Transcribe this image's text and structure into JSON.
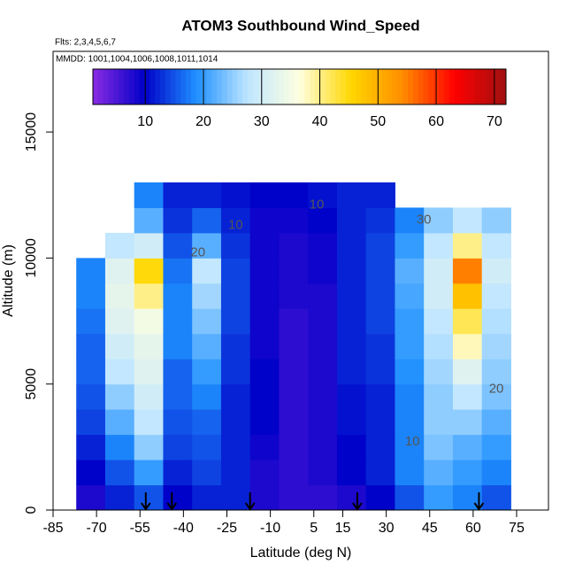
{
  "chart_data": {
    "type": "heatmap",
    "title": "ATOM3 Southbound Wind_Speed",
    "subtitle": "Flts: 2,3,4,5,6,7",
    "annotation": "MMDD: 1001,1004,1006,1008,1011,1014",
    "x_label": "Latitude (deg N)",
    "y_label": "Altitude (m)",
    "xlim": [
      -85,
      86
    ],
    "ylim": [
      0,
      18200
    ],
    "xticks": [
      -85,
      -70,
      -55,
      -40,
      -25,
      -10,
      5,
      15,
      30,
      45,
      60,
      75
    ],
    "yticks": [
      0,
      5000,
      10000,
      15000
    ],
    "xbins": [
      -77,
      -67,
      -57,
      -47,
      -37,
      -27,
      -17,
      -7,
      3,
      13,
      23,
      33,
      43,
      53,
      63,
      73
    ],
    "ybins": [
      0,
      1000,
      2000,
      3000,
      4000,
      5000,
      6000,
      7000,
      8000,
      9000,
      10000,
      11000,
      12000,
      13000
    ],
    "z": [
      [
        8,
        12,
        15,
        10,
        12,
        12,
        8,
        7,
        7,
        8,
        10,
        15,
        20,
        18,
        15
      ],
      [
        10,
        15,
        20,
        12,
        14,
        12,
        8,
        7,
        8,
        10,
        12,
        18,
        22,
        20,
        18
      ],
      [
        12,
        18,
        25,
        14,
        15,
        12,
        9,
        7,
        8,
        10,
        12,
        18,
        24,
        22,
        20
      ],
      [
        14,
        22,
        28,
        15,
        16,
        12,
        10,
        7,
        8,
        11,
        12,
        18,
        25,
        25,
        22
      ],
      [
        15,
        25,
        30,
        16,
        18,
        12,
        10,
        7,
        8,
        11,
        12,
        18,
        25,
        28,
        24
      ],
      [
        16,
        28,
        32,
        16,
        20,
        13,
        10,
        7,
        8,
        12,
        13,
        19,
        26,
        32,
        25
      ],
      [
        16,
        30,
        33,
        18,
        22,
        13,
        9,
        7,
        8,
        12,
        13,
        20,
        27,
        38,
        26
      ],
      [
        17,
        32,
        35,
        18,
        24,
        14,
        9,
        7,
        8,
        12,
        14,
        20,
        28,
        42,
        27
      ],
      [
        18,
        33,
        40,
        18,
        26,
        14,
        9,
        8,
        8,
        12,
        14,
        21,
        30,
        48,
        28
      ],
      [
        18,
        32,
        45,
        17,
        28,
        14,
        9,
        8,
        9,
        12,
        14,
        22,
        30,
        55,
        30
      ],
      [
        null,
        28,
        30,
        15,
        22,
        13,
        9,
        8,
        9,
        12,
        14,
        20,
        28,
        40,
        28
      ],
      [
        null,
        null,
        22,
        13,
        16,
        12,
        9,
        9,
        10,
        12,
        13,
        18,
        25,
        28,
        25
      ],
      [
        null,
        null,
        18,
        12,
        12,
        11,
        10,
        10,
        11,
        12,
        12,
        null,
        null,
        null,
        null
      ]
    ],
    "zlim": [
      1,
      72
    ],
    "zticks": [
      10,
      20,
      30,
      40,
      50,
      60,
      70
    ],
    "colorscale": [
      "#8a2be2",
      "#0000c8",
      "#1e90ff",
      "#bfe6ff",
      "#ffffe0",
      "#ffd700",
      "#ff8c00",
      "#ff0000",
      "#a01010"
    ],
    "contour_labels": [
      {
        "level": 10,
        "lat": -22,
        "alt": 11300
      },
      {
        "level": 10,
        "lat": 6,
        "alt": 12100
      },
      {
        "level": 20,
        "lat": -35,
        "alt": 10200
      },
      {
        "level": 30,
        "lat": 43,
        "alt": 11500
      },
      {
        "level": 20,
        "lat": 68,
        "alt": 4800
      },
      {
        "level": 10,
        "lat": 39,
        "alt": 2700
      }
    ],
    "flight_markers": [
      -53,
      -44,
      -17,
      20,
      62
    ]
  }
}
